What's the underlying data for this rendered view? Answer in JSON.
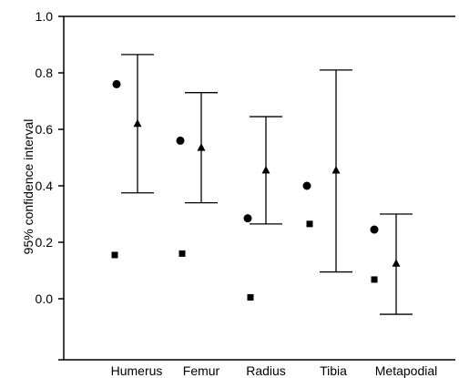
{
  "chart_data": {
    "type": "scatter",
    "title": "",
    "xlabel": "",
    "ylabel": "95% confidence interval",
    "categories": [
      "Humerus",
      "Femur",
      "Radius",
      "Tibia",
      "Metapodial"
    ],
    "yticks": [
      "1.0",
      "0.8",
      "0.6",
      "0.4",
      "0.2",
      "0.0"
    ],
    "ylim": [
      -0.2,
      1.0
    ],
    "grid": false,
    "legend": "none",
    "circle_values": [
      0.76,
      0.56,
      0.285,
      0.4,
      0.245
    ],
    "square_values": [
      0.155,
      0.16,
      0.005,
      0.265,
      0.068
    ],
    "intervals": [
      {
        "mean": 0.62,
        "low": 0.375,
        "high": 0.865
      },
      {
        "mean": 0.535,
        "low": 0.34,
        "high": 0.73
      },
      {
        "mean": 0.455,
        "low": 0.265,
        "high": 0.645
      },
      {
        "mean": 0.455,
        "low": 0.095,
        "high": 0.81
      },
      {
        "mean": 0.125,
        "low": -0.055,
        "high": 0.3
      }
    ],
    "colors": {
      "marks": "#000000",
      "axis": "#000000"
    }
  }
}
